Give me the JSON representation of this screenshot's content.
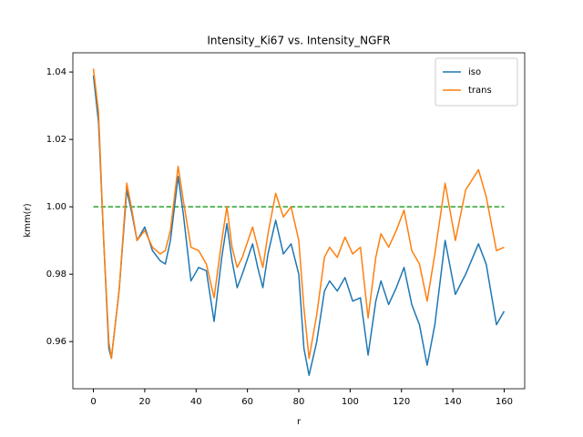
{
  "chart_data": {
    "type": "line",
    "title": "Intensity_Ki67 vs. Intensity_NGFR",
    "x_label": "r",
    "y_label": "kmm(r)",
    "x": [
      0,
      2,
      4,
      6,
      7,
      10,
      13,
      15,
      17,
      20,
      23,
      26,
      28,
      30,
      33,
      35,
      38,
      41,
      44,
      47,
      50,
      52,
      54,
      56,
      58,
      62,
      64,
      66,
      68,
      71,
      74,
      77,
      80,
      82,
      84,
      87,
      90,
      92,
      95,
      98,
      101,
      104,
      107,
      110,
      112,
      115,
      118,
      121,
      124,
      127,
      130,
      133,
      137,
      141,
      145,
      150,
      153,
      157,
      160
    ],
    "series": [
      {
        "name": "iso",
        "color": "#1f77b4",
        "values": [
          1.039,
          1.025,
          0.99,
          0.958,
          0.955,
          0.975,
          1.005,
          0.998,
          0.99,
          0.994,
          0.987,
          0.984,
          0.983,
          0.99,
          1.009,
          0.998,
          0.978,
          0.982,
          0.981,
          0.966,
          0.985,
          0.995,
          0.984,
          0.976,
          0.98,
          0.989,
          0.982,
          0.976,
          0.986,
          0.996,
          0.986,
          0.989,
          0.98,
          0.958,
          0.95,
          0.96,
          0.975,
          0.978,
          0.975,
          0.979,
          0.972,
          0.973,
          0.956,
          0.972,
          0.978,
          0.971,
          0.976,
          0.982,
          0.971,
          0.965,
          0.953,
          0.965,
          0.99,
          0.974,
          0.98,
          0.989,
          0.983,
          0.965,
          0.969
        ]
      },
      {
        "name": "trans",
        "color": "#ff7f0e",
        "values": [
          1.041,
          1.028,
          0.99,
          0.96,
          0.955,
          0.975,
          1.007,
          0.999,
          0.99,
          0.993,
          0.988,
          0.986,
          0.987,
          0.993,
          1.012,
          1.002,
          0.988,
          0.987,
          0.983,
          0.973,
          0.99,
          1.0,
          0.988,
          0.982,
          0.985,
          0.994,
          0.988,
          0.982,
          0.992,
          1.004,
          0.997,
          1.0,
          0.99,
          0.97,
          0.955,
          0.968,
          0.985,
          0.988,
          0.985,
          0.991,
          0.986,
          0.988,
          0.967,
          0.985,
          0.992,
          0.988,
          0.993,
          0.999,
          0.987,
          0.983,
          0.972,
          0.986,
          1.007,
          0.99,
          1.005,
          1.011,
          1.003,
          0.987,
          0.988
        ]
      }
    ],
    "hline": {
      "value": 1,
      "color": "#2ca02c"
    },
    "xlim": [
      -8,
      168
    ],
    "ylim": [
      0.946,
      1.0457
    ],
    "xticks": [
      0,
      20,
      40,
      60,
      80,
      100,
      120,
      140,
      160
    ],
    "yticks": [
      0.96,
      0.98,
      {
        "value": 1,
        "label": "1.00"
      },
      1.02,
      1.04
    ],
    "legend": "upper-right"
  }
}
